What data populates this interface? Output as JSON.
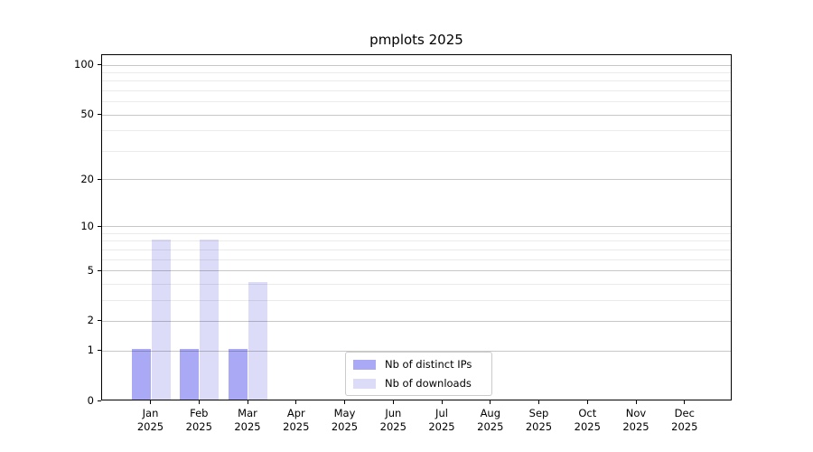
{
  "chart_data": {
    "type": "bar",
    "title": "pmplots 2025",
    "categories": [
      "Jan 2025",
      "Feb 2025",
      "Mar 2025",
      "Apr 2025",
      "May 2025",
      "Jun 2025",
      "Jul 2025",
      "Aug 2025",
      "Sep 2025",
      "Oct 2025",
      "Nov 2025",
      "Dec 2025"
    ],
    "series": [
      {
        "name": "Nb of distinct IPs",
        "color": "#a9a9f5",
        "values": [
          1,
          1,
          1,
          0,
          0,
          0,
          0,
          0,
          0,
          0,
          0,
          0
        ]
      },
      {
        "name": "Nb of downloads",
        "color": "#dcdcf9",
        "values": [
          8,
          8,
          4,
          0,
          0,
          0,
          0,
          0,
          0,
          0,
          0,
          0
        ]
      }
    ],
    "y_axis": {
      "scale": "log1p",
      "major_ticks": [
        0,
        1,
        2,
        5,
        10,
        20,
        50,
        100
      ],
      "minor_ticks": [
        3,
        4,
        6,
        7,
        8,
        9,
        30,
        40,
        60,
        70,
        80,
        90
      ],
      "ylim": [
        0,
        115
      ],
      "grid": true
    },
    "xlabel": "",
    "ylabel": "",
    "legend": {
      "position": "lower center",
      "entries": [
        "Nb of distinct IPs",
        "Nb of downloads"
      ]
    }
  }
}
